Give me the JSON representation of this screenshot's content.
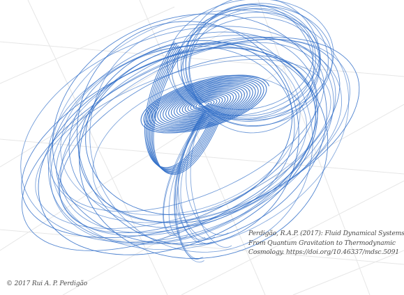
{
  "figure": {
    "orbit_color": "#2e6cc7",
    "grid_color": "#e6e6e6",
    "background": "#ffffff"
  },
  "citation": {
    "line1": "Perdigão, R.A.P. (2017): Fluid Dynamical Systems:",
    "line2": "From Quantum Gravitation to Thermodynamic",
    "line3": "Cosmology. https://doi.org/10.46337/mdsc.5091"
  },
  "copyright": "© 2017 Rui A. P. Perdigão"
}
